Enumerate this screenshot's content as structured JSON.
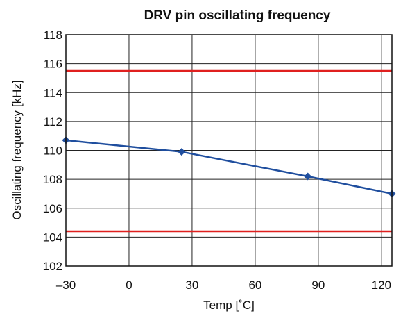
{
  "chart_data": {
    "type": "line",
    "title": "DRV pin oscillating frequency",
    "xlabel": "Temp [˚C]",
    "ylabel": "Oscillating frequency [kHz]",
    "xlim": [
      -30,
      125
    ],
    "ylim": [
      102,
      118
    ],
    "x_ticks": [
      -30,
      0,
      30,
      60,
      90,
      120
    ],
    "x_tick_labels": [
      "–30",
      "0",
      "30",
      "60",
      "90",
      "120"
    ],
    "y_ticks": [
      102,
      104,
      106,
      108,
      110,
      112,
      114,
      116,
      118
    ],
    "y_tick_labels": [
      "102",
      "104",
      "106",
      "108",
      "110",
      "112",
      "114",
      "116",
      "118"
    ],
    "grid": true,
    "series": [
      {
        "color": "#1f4e9e",
        "marker": "diamond",
        "x": [
          -30,
          25,
          85,
          125
        ],
        "y": [
          110.7,
          109.9,
          108.2,
          107.0
        ]
      }
    ],
    "limit_lines": [
      {
        "y": 115.5,
        "color": "#e0201f"
      },
      {
        "y": 104.4,
        "color": "#e0201f"
      }
    ]
  }
}
